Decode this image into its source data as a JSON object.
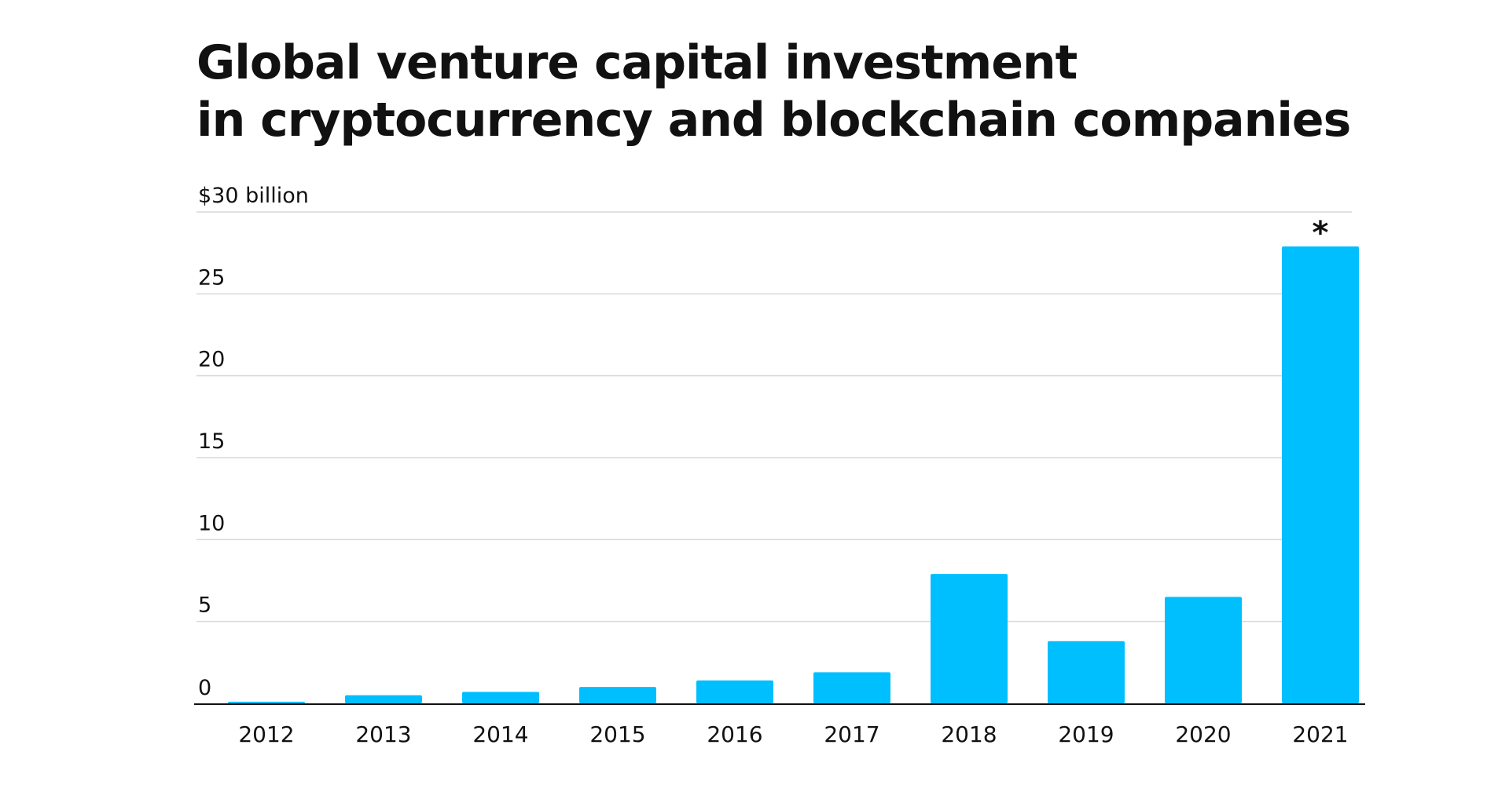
{
  "chart_data": {
    "type": "bar",
    "title_lines": [
      "Global venture capital investment",
      "in cryptocurrency and blockchain companies"
    ],
    "ylabel": "",
    "xlabel": "",
    "ylim": [
      0,
      30
    ],
    "y_ticks": [
      0,
      5,
      10,
      15,
      20,
      25,
      30
    ],
    "y_tick_labels": [
      "0",
      "5",
      "10",
      "15",
      "20",
      "25",
      "$30 billion"
    ],
    "categories": [
      "2012",
      "2013",
      "2014",
      "2015",
      "2016",
      "2017",
      "2018",
      "2019",
      "2020",
      "2021"
    ],
    "values": [
      0.1,
      0.5,
      0.7,
      1.0,
      1.4,
      1.9,
      7.9,
      3.8,
      6.5,
      27.9
    ],
    "annotations": [
      {
        "category": "2021",
        "text": "*"
      }
    ],
    "grid": true,
    "bar_color": "#00BFFF",
    "grid_color": "#D9D9D9",
    "axis_color": "#111111"
  }
}
